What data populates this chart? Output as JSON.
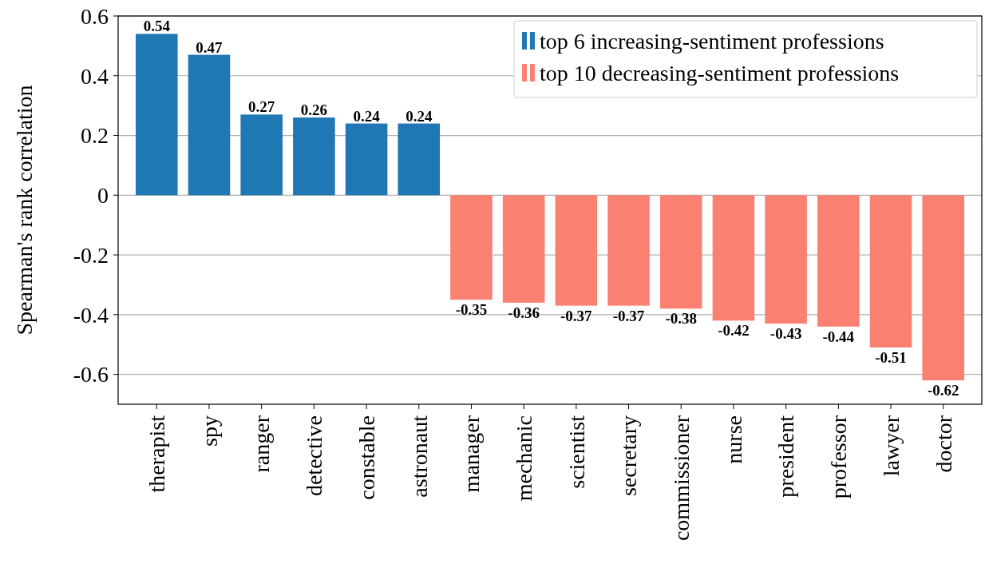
{
  "chart_data": {
    "type": "bar",
    "ylabel": "Spearman's rank correlation",
    "categories": [
      "therapist",
      "spy",
      "ranger",
      "detective",
      "constable",
      "astronaut",
      "manager",
      "mechanic",
      "scientist",
      "secretary",
      "commissioner",
      "nurse",
      "president",
      "professor",
      "lawyer",
      "doctor"
    ],
    "series": [
      {
        "name": "top 6 increasing-sentiment professions",
        "color": "#1f77b4",
        "values": [
          0.54,
          0.47,
          0.27,
          0.26,
          0.24,
          0.24,
          null,
          null,
          null,
          null,
          null,
          null,
          null,
          null,
          null,
          null
        ]
      },
      {
        "name": "top 10 decreasing-sentiment professions",
        "color": "#fa8072",
        "values": [
          null,
          null,
          null,
          null,
          null,
          null,
          -0.35,
          -0.36,
          -0.37,
          -0.37,
          -0.38,
          -0.42,
          -0.43,
          -0.44,
          -0.51,
          -0.62
        ]
      }
    ],
    "ylim": [
      -0.7,
      0.6
    ],
    "yticks": [
      -0.6,
      -0.4,
      -0.2,
      0,
      0.2,
      0.4,
      0.6
    ],
    "grid": "y",
    "legend": "top right",
    "data_labels": true
  }
}
